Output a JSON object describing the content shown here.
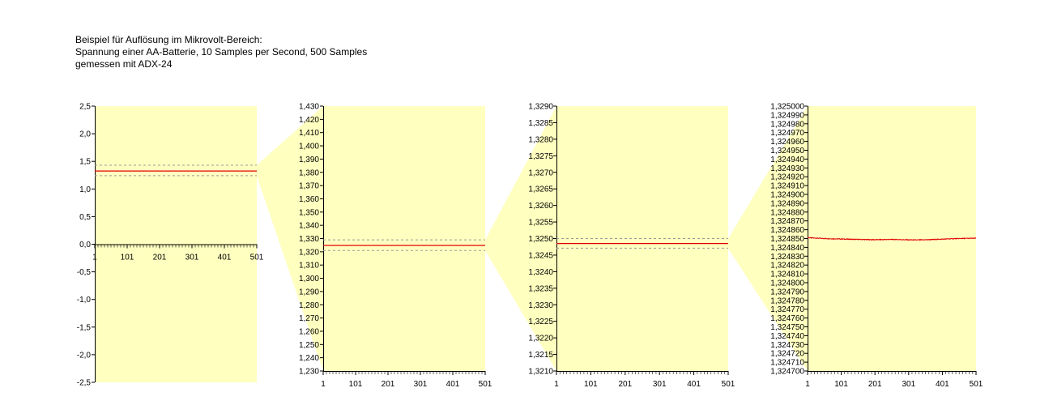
{
  "title_lines": [
    "Beispiel für Auflösung im Mikrovolt-Bereich:",
    "Spannung einer AA-Batterie, 10 Samples per Second, 500 Samples",
    "gemessen mit ADX-24"
  ],
  "colors": {
    "plot_background": "#ffffc0",
    "zoom_wedge": "#ffffc0",
    "signal": "#e00000",
    "dashed_lines": "#999999",
    "axis": "#000000"
  },
  "chart_data": [
    {
      "type": "line",
      "title": "",
      "xlabel": "",
      "ylabel": "",
      "x_range": [
        1,
        501
      ],
      "x_ticks": [
        "1",
        "101",
        "201",
        "301",
        "401",
        "501"
      ],
      "x_axis_at_zero": true,
      "ylim": [
        -2.5,
        2.5
      ],
      "y_tick_step": 0.5,
      "y_decimals": 1,
      "y_ticks": [
        "2,5",
        "2,0",
        "1,5",
        "1,0",
        "0,5",
        "0,0",
        "-0,5",
        "-1,0",
        "-1,5",
        "-2,0",
        "-2,5"
      ],
      "signal_level": 1.3248,
      "dashed_levels": [
        1.43,
        1.24
      ],
      "zoom_window": [
        1.23,
        1.43
      ]
    },
    {
      "type": "line",
      "title": "",
      "xlabel": "",
      "ylabel": "",
      "x_range": [
        1,
        501
      ],
      "x_ticks": [
        "1",
        "101",
        "201",
        "301",
        "401",
        "501"
      ],
      "ylim": [
        1.23,
        1.43
      ],
      "y_tick_step": 0.01,
      "y_decimals": 3,
      "y_ticks": [
        "1,430",
        "1,420",
        "1,410",
        "1,400",
        "1,390",
        "1,380",
        "1,370",
        "1,360",
        "1,350",
        "1,340",
        "1,330",
        "1,320",
        "1,310",
        "1,300",
        "1,290",
        "1,280",
        "1,270",
        "1,260",
        "1,250",
        "1,240",
        "1,230"
      ],
      "signal_level": 1.3248,
      "dashed_levels": [
        1.329,
        1.321
      ],
      "zoom_window": [
        1.321,
        1.329
      ]
    },
    {
      "type": "line",
      "title": "",
      "xlabel": "",
      "ylabel": "",
      "x_range": [
        1,
        501
      ],
      "x_ticks": [
        "1",
        "101",
        "201",
        "301",
        "401",
        "501"
      ],
      "ylim": [
        1.321,
        1.329
      ],
      "y_tick_step": 0.0005,
      "y_decimals": 4,
      "y_ticks": [
        "1,3290",
        "1,3285",
        "1,3280",
        "1,3275",
        "1,3270",
        "1,3265",
        "1,3260",
        "1,3255",
        "1,3250",
        "1,3245",
        "1,3240",
        "1,3235",
        "1,3230",
        "1,3225",
        "1,3220",
        "1,3215",
        "1,3210"
      ],
      "signal_level": 1.32485,
      "dashed_levels": [
        1.325,
        1.32471
      ],
      "zoom_window": [
        1.3247,
        1.325
      ]
    },
    {
      "type": "line",
      "title": "",
      "xlabel": "",
      "ylabel": "",
      "x_range": [
        1,
        501
      ],
      "x_ticks": [
        "1",
        "101",
        "201",
        "301",
        "401",
        "501"
      ],
      "ylim": [
        1.3247,
        1.325
      ],
      "y_tick_step": 1e-05,
      "y_decimals": 6,
      "y_ticks": [
        "1,325000",
        "1,324990",
        "1,324980",
        "1,324970",
        "1,324960",
        "1,324950",
        "1,324940",
        "1,324930",
        "1,324920",
        "1,324910",
        "1,324900",
        "1,324890",
        "1,324880",
        "1,324870",
        "1,324860",
        "1,324850",
        "1,324840",
        "1,324830",
        "1,324820",
        "1,324810",
        "1,324800",
        "1,324790",
        "1,324780",
        "1,324770",
        "1,324760",
        "1,324750",
        "1,324740",
        "1,324730",
        "1,324720",
        "1,324710",
        "1,324700"
      ],
      "series": [
        {
          "x": [
            1,
            26,
            51,
            76,
            101,
            126,
            151,
            176,
            201,
            226,
            251,
            276,
            301,
            326,
            351,
            376,
            401,
            426,
            451,
            476,
            501
          ],
          "values": [
            1.324851,
            1.3248505,
            1.32485,
            1.3248497,
            1.3248495,
            1.3248492,
            1.324849,
            1.3248488,
            1.3248487,
            1.3248488,
            1.324849,
            1.3248488,
            1.3248485,
            1.3248484,
            1.3248486,
            1.3248489,
            1.3248493,
            1.3248497,
            1.32485,
            1.3248502,
            1.3248503
          ]
        }
      ]
    }
  ]
}
